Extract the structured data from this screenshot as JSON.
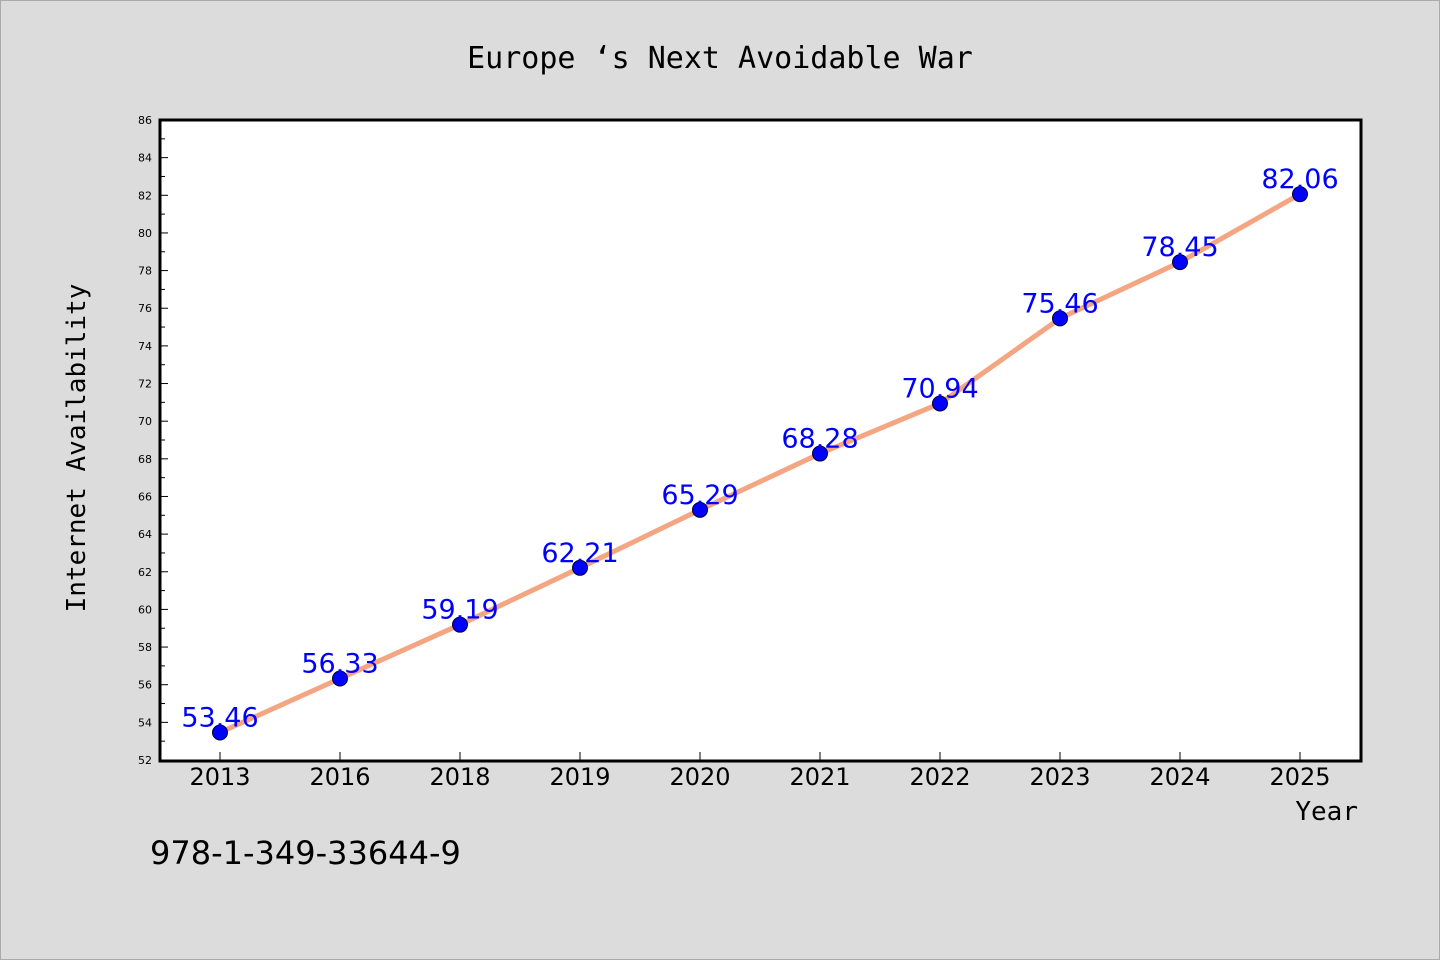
{
  "chart_data": {
    "type": "line",
    "title": "Europe ‘s Next Avoidable War",
    "xlabel": "Year",
    "ylabel": "Internet Availability",
    "footer_text": "978-1-349-33644-9",
    "categories": [
      "2013",
      "2016",
      "2018",
      "2019",
      "2020",
      "2021",
      "2022",
      "2023",
      "2024",
      "2025"
    ],
    "series": [
      {
        "values": [
          53.46,
          56.33,
          59.19,
          62.21,
          65.29,
          68.28,
          70.94,
          75.46,
          78.45,
          82.06
        ],
        "labels": [
          "53.46",
          "56.33",
          "59.19",
          "62.21",
          "65.29",
          "68.28",
          "70.94",
          "75.46",
          "78.45",
          "82.06"
        ],
        "line_color": "#f4a582",
        "marker_color": "#0000ff"
      }
    ],
    "ylim": [
      52,
      86
    ],
    "yticks": [
      "52",
      "54",
      "56",
      "58",
      "60",
      "62",
      "64",
      "66",
      "68",
      "70",
      "72",
      "74",
      "76",
      "78",
      "80",
      "82",
      "84",
      "86"
    ],
    "grid": false,
    "legend": "none",
    "colors": {
      "background": "#dcdcdc",
      "plot_area": "#ffffff",
      "label_text": "#0000ff"
    }
  }
}
